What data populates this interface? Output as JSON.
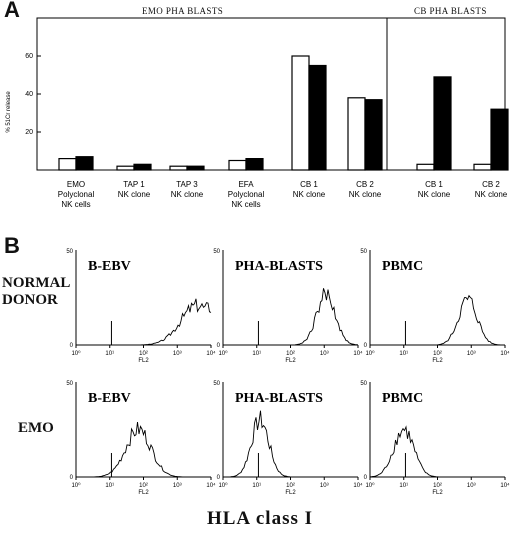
{
  "panel_a": {
    "letter": "A",
    "ylabel": "% 51Cr release",
    "yticks": [
      "20",
      "40",
      "60"
    ],
    "groups": [
      {
        "title": "EMO PHA BLASTS"
      },
      {
        "title": "CB PHA BLASTS"
      }
    ]
  },
  "panel_b": {
    "letter": "B",
    "rows": [
      {
        "label_line1": "NORMAL",
        "label_line2": "DONOR"
      },
      {
        "label_line1": "EMO",
        "label_line2": ""
      }
    ],
    "xtick_labels": [
      "10⁰",
      "10¹",
      "10²",
      "10³",
      "10⁴"
    ],
    "ytick_top": "50",
    "ytick_bottom": "0",
    "xlabel": "FL2",
    "footer": "HLA class I"
  },
  "chart_data": [
    {
      "type": "bar",
      "panel": "A",
      "ylabel": "% 51Cr release",
      "ylim": [
        0,
        80
      ],
      "groups": [
        {
          "title": "EMO PHA BLASTS",
          "categories": [
            0,
            1,
            2,
            3,
            4,
            5
          ]
        },
        {
          "title": "CB PHA BLASTS",
          "categories": [
            6,
            7
          ]
        }
      ],
      "categories": [
        [
          "EMO",
          "Polyclonal",
          "NK cells"
        ],
        [
          "TAP 1",
          "NK clone"
        ],
        [
          "TAP 3",
          "NK clone"
        ],
        [
          "EFA",
          "Polyclonal",
          "NK cells"
        ],
        [
          "CB 1",
          "NK clone"
        ],
        [
          "CB 2",
          "NK clone"
        ],
        [
          "CB 1",
          "NK clone"
        ],
        [
          "CB 2",
          "NK clone"
        ]
      ],
      "series": [
        {
          "values": [
            6,
            2,
            2,
            5,
            60,
            38,
            3,
            3
          ],
          "fill": "#ffffff"
        },
        {
          "values": [
            7,
            3,
            2,
            6,
            55,
            37,
            49,
            32
          ],
          "fill": "#000000"
        }
      ]
    },
    {
      "type": "histogram",
      "panel": "B",
      "xscale": "log",
      "xlim": [
        1,
        10000
      ],
      "ylim": [
        0,
        50
      ],
      "xlabel": "FL2",
      "histograms": [
        {
          "row": "NORMAL DONOR",
          "label": "B-EBV",
          "peak_log10": 3.6,
          "width": 0.5,
          "height": 0.42,
          "skew": "right-edge"
        },
        {
          "row": "NORMAL DONOR",
          "label": "PHA-BLASTS",
          "peak_log10": 3.05,
          "width": 0.28,
          "height": 0.53
        },
        {
          "row": "NORMAL DONOR",
          "label": "PBMC",
          "peak_log10": 2.9,
          "width": 0.28,
          "height": 0.48
        },
        {
          "row": "EMO",
          "label": "B-EBV",
          "peak_log10": 1.85,
          "width": 0.38,
          "height": 0.5
        },
        {
          "row": "EMO",
          "label": "PHA-BLASTS",
          "peak_log10": 1.1,
          "width": 0.26,
          "height": 0.6
        },
        {
          "row": "EMO",
          "label": "PBMC",
          "peak_log10": 1.0,
          "width": 0.3,
          "height": 0.5
        }
      ]
    }
  ]
}
